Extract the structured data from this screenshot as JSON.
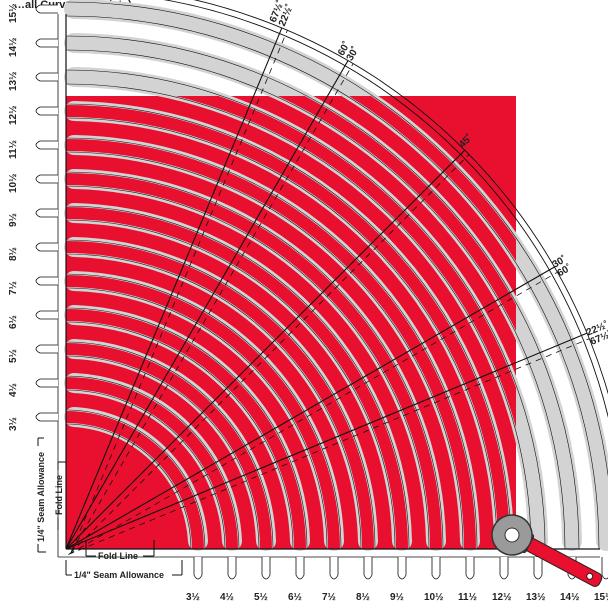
{
  "colors": {
    "red": "#e8102e",
    "gray": "#d3d3d3",
    "line": "#111111",
    "background": "#ffffff"
  },
  "title_fragment": "…all Curves Template)",
  "sizes": [
    "3½",
    "4½",
    "5½",
    "6½",
    "7½",
    "8½",
    "9½",
    "10½",
    "11½",
    "12½",
    "13½",
    "14½",
    "15½"
  ],
  "angle_labels": [
    {
      "id": "67-22",
      "top": "67½˚",
      "bottom": "22½˚"
    },
    {
      "id": "60-30",
      "top": "60˚",
      "bottom": "30˚"
    },
    {
      "id": "45",
      "top": "45˚",
      "bottom": ""
    },
    {
      "id": "30-60",
      "top": "30˚",
      "bottom": "60˚"
    },
    {
      "id": "22-67",
      "top": "22½˚",
      "bottom": "67½˚"
    }
  ],
  "labels": {
    "fold_line_bottom": "Fold Line",
    "seam_allowance_bottom": "1/4\" Seam Allowance",
    "fold_line_left": "Fold Line",
    "seam_allowance_left": "1/4\" Seam Allowance"
  },
  "icons": [
    "rotary-cutter-icon",
    "hanging-hole-icon"
  ]
}
